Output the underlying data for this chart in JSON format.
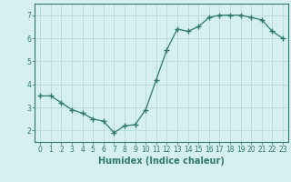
{
  "x": [
    0,
    1,
    2,
    3,
    4,
    5,
    6,
    7,
    8,
    9,
    10,
    11,
    12,
    13,
    14,
    15,
    16,
    17,
    18,
    19,
    20,
    21,
    22,
    23
  ],
  "y": [
    3.5,
    3.5,
    3.2,
    2.9,
    2.75,
    2.5,
    2.4,
    1.9,
    2.2,
    2.25,
    2.9,
    4.2,
    5.5,
    6.4,
    6.3,
    6.5,
    6.9,
    7.0,
    7.0,
    7.0,
    6.9,
    6.8,
    6.3,
    6.0
  ],
  "line_color": "#2d7a6a",
  "marker": "+",
  "marker_size": 4,
  "bg_color": "#d6efef",
  "grid_color": "#b8d8d8",
  "xlabel": "Humidex (Indice chaleur)",
  "xlabel_fontsize": 7,
  "ylim": [
    1.5,
    7.5
  ],
  "xlim": [
    -0.5,
    23.5
  ],
  "yticks": [
    2,
    3,
    4,
    5,
    6,
    7
  ],
  "xticks": [
    0,
    1,
    2,
    3,
    4,
    5,
    6,
    7,
    8,
    9,
    10,
    11,
    12,
    13,
    14,
    15,
    16,
    17,
    18,
    19,
    20,
    21,
    22,
    23
  ],
  "tick_fontsize": 5.5,
  "tick_color": "#2d7a6a",
  "axis_color": "#2d7a6a",
  "linewidth": 0.9
}
